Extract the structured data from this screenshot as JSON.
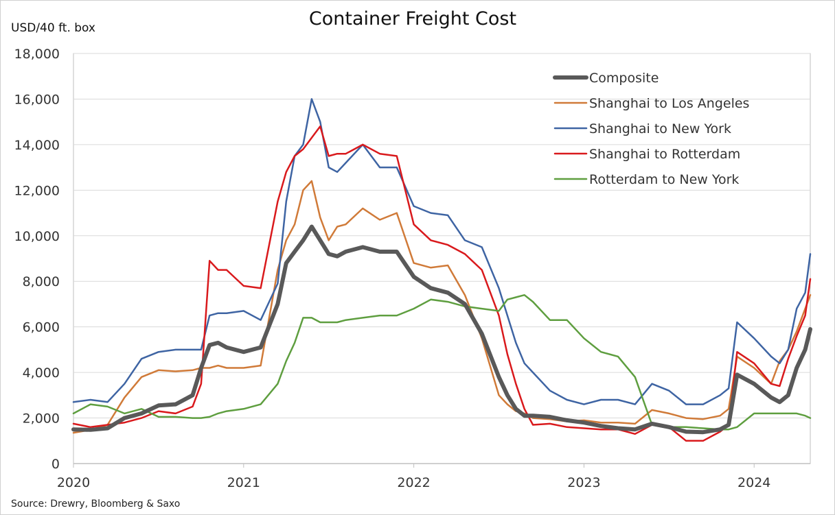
{
  "chart_data": {
    "type": "line",
    "title": "Container Freight Cost",
    "ylabel": "USD/40 ft. box",
    "xlabel": "",
    "source": "Source: Drewry, Bloomberg & Saxo",
    "ylim": [
      0,
      18000
    ],
    "xlim": [
      2020.0,
      2024.33
    ],
    "yticks": [
      0,
      2000,
      4000,
      6000,
      8000,
      10000,
      12000,
      14000,
      16000,
      18000
    ],
    "ytick_labels": [
      "0",
      "2,000",
      "4,000",
      "6,000",
      "8,000",
      "10,000",
      "12,000",
      "14,000",
      "16,000",
      "18,000"
    ],
    "xticks": [
      2020,
      2021,
      2022,
      2023,
      2024
    ],
    "xtick_labels": [
      "2020",
      "2021",
      "2022",
      "2023",
      "2024"
    ],
    "grid": true,
    "legend_position": "top-right",
    "x": [
      2020.0,
      2020.1,
      2020.2,
      2020.3,
      2020.4,
      2020.5,
      2020.6,
      2020.7,
      2020.75,
      2020.8,
      2020.85,
      2020.9,
      2021.0,
      2021.1,
      2021.2,
      2021.25,
      2021.3,
      2021.35,
      2021.4,
      2021.45,
      2021.5,
      2021.55,
      2021.6,
      2021.7,
      2021.8,
      2021.9,
      2022.0,
      2022.1,
      2022.2,
      2022.3,
      2022.4,
      2022.5,
      2022.55,
      2022.6,
      2022.65,
      2022.7,
      2022.8,
      2022.9,
      2023.0,
      2023.1,
      2023.2,
      2023.3,
      2023.4,
      2023.5,
      2023.6,
      2023.7,
      2023.8,
      2023.85,
      2023.9,
      2024.0,
      2024.1,
      2024.15,
      2024.2,
      2024.25,
      2024.3,
      2024.33
    ],
    "series": [
      {
        "name": "Composite",
        "color": "#595959",
        "width": 6,
        "values": [
          1500,
          1480,
          1550,
          2000,
          2200,
          2550,
          2600,
          3000,
          4200,
          5200,
          5300,
          5100,
          4900,
          5100,
          7000,
          8800,
          9300,
          9800,
          10400,
          9800,
          9200,
          9100,
          9300,
          9500,
          9300,
          9300,
          8200,
          7700,
          7500,
          7000,
          5700,
          3800,
          3000,
          2400,
          2100,
          2100,
          2050,
          1900,
          1800,
          1650,
          1550,
          1500,
          1750,
          1600,
          1400,
          1380,
          1500,
          1700,
          3900,
          3500,
          2900,
          2700,
          3000,
          4200,
          5000,
          5900
        ]
      },
      {
        "name": "Shanghai to Los Angeles",
        "color": "#D07A38",
        "width": 2.5,
        "values": [
          1350,
          1480,
          1700,
          2900,
          3800,
          4100,
          4050,
          4100,
          4200,
          4200,
          4300,
          4200,
          4200,
          4300,
          8500,
          9800,
          10500,
          12000,
          12400,
          10800,
          9800,
          10400,
          10500,
          11200,
          10700,
          11000,
          8800,
          8600,
          8700,
          7400,
          5500,
          3000,
          2600,
          2300,
          2200,
          2000,
          1950,
          1850,
          1900,
          1800,
          1800,
          1750,
          2350,
          2200,
          2000,
          1950,
          2100,
          2400,
          4700,
          4200,
          3500,
          4500,
          5000,
          5800,
          6800,
          7400
        ]
      },
      {
        "name": "Shanghai to New York",
        "color": "#3E64A3",
        "width": 2.5,
        "values": [
          2700,
          2800,
          2700,
          3500,
          4600,
          4900,
          5000,
          5000,
          5000,
          6500,
          6600,
          6600,
          6700,
          6300,
          7900,
          11500,
          13500,
          14000,
          16000,
          15000,
          13000,
          12800,
          13200,
          14000,
          13000,
          13000,
          11300,
          11000,
          10900,
          9800,
          9500,
          7700,
          6500,
          5300,
          4400,
          4000,
          3200,
          2800,
          2600,
          2800,
          2800,
          2600,
          3500,
          3200,
          2600,
          2600,
          3000,
          3300,
          6200,
          5500,
          4700,
          4400,
          5000,
          6800,
          7500,
          9200
        ]
      },
      {
        "name": "Shanghai to Rotterdam",
        "color": "#D9191C",
        "width": 2.5,
        "values": [
          1750,
          1600,
          1700,
          1800,
          2000,
          2300,
          2200,
          2500,
          3500,
          8900,
          8500,
          8500,
          7800,
          7700,
          11500,
          12800,
          13500,
          13800,
          14300,
          14800,
          13500,
          13600,
          13600,
          14000,
          13600,
          13500,
          10500,
          9800,
          9600,
          9200,
          8500,
          6500,
          4800,
          3500,
          2400,
          1700,
          1750,
          1600,
          1550,
          1500,
          1500,
          1300,
          1700,
          1600,
          1000,
          1000,
          1400,
          1700,
          4900,
          4400,
          3500,
          3400,
          4600,
          5600,
          6500,
          8100
        ]
      },
      {
        "name": "Rotterdam to New York",
        "color": "#5E9E3F",
        "width": 2.5,
        "values": [
          2200,
          2600,
          2500,
          2200,
          2400,
          2050,
          2050,
          2000,
          2000,
          2050,
          2200,
          2300,
          2400,
          2600,
          3500,
          4500,
          5300,
          6400,
          6400,
          6200,
          6200,
          6200,
          6300,
          6400,
          6500,
          6500,
          6800,
          7200,
          7100,
          6900,
          6800,
          6700,
          7200,
          7300,
          7400,
          7100,
          6300,
          6300,
          5500,
          4900,
          4700,
          3800,
          1700,
          1600,
          1600,
          1550,
          1500,
          1500,
          1600,
          2200,
          2200,
          2200,
          2200,
          2200,
          2100,
          2000
        ]
      }
    ]
  }
}
